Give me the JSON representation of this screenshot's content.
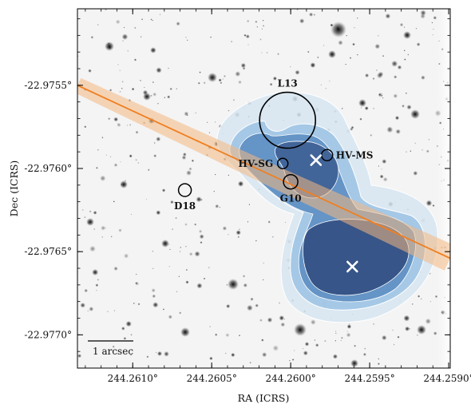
{
  "chart_data": {
    "type": "scatter",
    "background": "grayscale stellar field image",
    "xlabel": "RA (ICRS)",
    "ylabel": "Dec (ICRS)",
    "xlim": [
      244.26135,
      244.25899
    ],
    "ylim": [
      -22.9772,
      -22.97504
    ],
    "x_ticks": [
      {
        "value": 244.261,
        "label": "244.2610°"
      },
      {
        "value": 244.2605,
        "label": "244.2605°"
      },
      {
        "value": 244.26,
        "label": "244.2600°"
      },
      {
        "value": 244.2595,
        "label": "244.2595°"
      },
      {
        "value": 244.259,
        "label": "244.2590°"
      }
    ],
    "y_ticks": [
      {
        "value": -22.9755,
        "label": "-22.9755°"
      },
      {
        "value": -22.976,
        "label": "-22.9760°"
      },
      {
        "value": -22.9765,
        "label": "-22.9765°"
      },
      {
        "value": -22.977,
        "label": "-22.9770°"
      }
    ],
    "circles": [
      {
        "label": "L13",
        "ra": 244.26002,
        "dec": -22.97571
      },
      {
        "label": "HV-SG",
        "ra": 244.26005,
        "dec": -22.97597
      },
      {
        "label": "HV-MS",
        "ra": 244.25977,
        "dec": -22.97592
      },
      {
        "label": "G10",
        "ra": 244.26,
        "dec": -22.97608
      },
      {
        "label": "D18",
        "ra": 244.26067,
        "dec": -22.97613
      }
    ],
    "crosses": [
      {
        "ra": 244.25984,
        "dec": -22.97595
      },
      {
        "ra": 244.25961,
        "dec": -22.97659
      }
    ],
    "line": {
      "color": "#f07f20",
      "band_color": "#f4b882",
      "start": {
        "ra": 244.26135,
        "dec": -22.9755
      },
      "end": {
        "ra": 244.25899,
        "dec": -22.97654
      }
    },
    "contour_colors": [
      "#d6e5f2",
      "#9fc4e4",
      "#5f8fc3",
      "#334f82"
    ],
    "scalebar": {
      "label": "1 arcsec"
    }
  }
}
